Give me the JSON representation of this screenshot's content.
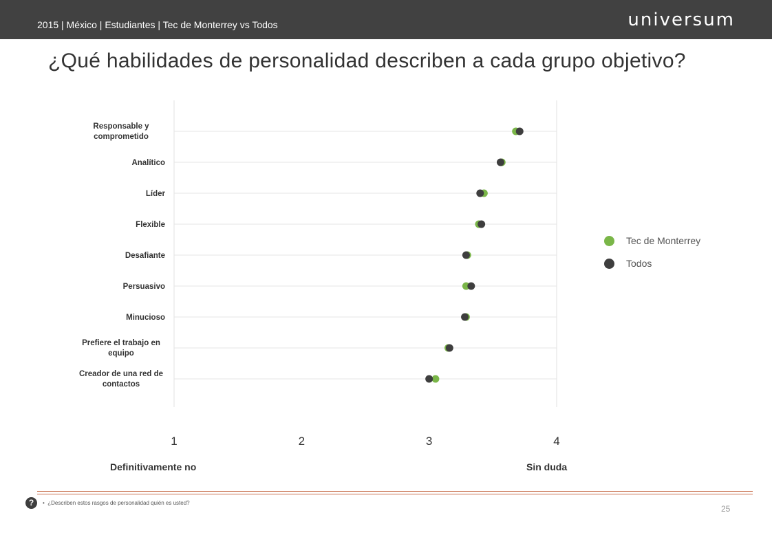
{
  "header": {
    "breadcrumb": "2015 | México | Estudiantes | Tec de Monterrey vs Todos",
    "logo_text": "universum"
  },
  "page_title": "¿Qué habilidades de personalidad describen a cada grupo objetivo?",
  "chart_data": {
    "type": "scatter",
    "orientation": "horizontal-dot-plot",
    "title": "",
    "categories": [
      "Responsable y comprometido",
      "Analítico",
      "Líder",
      "Flexible",
      "Desafiante",
      "Persuasivo",
      "Minucioso",
      "Prefiere el trabajo en equipo",
      "Creador de una red de contactos"
    ],
    "series": [
      {
        "name": "Tec de Monterrey",
        "color": "#7ab648",
        "values": [
          3.68,
          3.57,
          3.43,
          3.39,
          3.3,
          3.29,
          3.29,
          3.15,
          3.05
        ]
      },
      {
        "name": "Todos",
        "color": "#3e3e3e",
        "values": [
          3.71,
          3.56,
          3.4,
          3.41,
          3.29,
          3.33,
          3.28,
          3.16,
          3.0
        ]
      }
    ],
    "xlim": [
      1,
      4
    ],
    "x_ticks": [
      "1",
      "2",
      "3",
      "4"
    ],
    "x_low_label": "Definitivamente no",
    "x_high_label": "Sin duda",
    "legend_position": "right",
    "grid": true
  },
  "footer": {
    "question_icon": "?",
    "note": "¿Describen estos rasgos de personalidad quién es usted?",
    "page_number": "25"
  }
}
